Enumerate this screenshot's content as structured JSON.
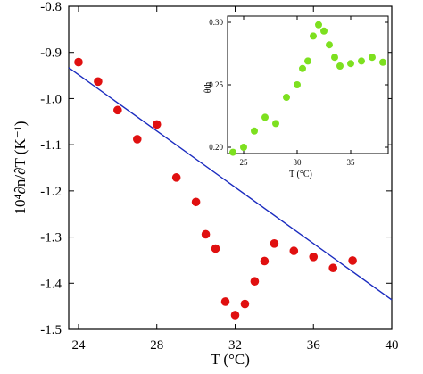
{
  "chart_data": [
    {
      "type": "scatter",
      "xlabel": "T (°C)",
      "ylabel": "10⁴∂n/∂T (K⁻¹)",
      "xlim": [
        23.5,
        40
      ],
      "ylim": [
        -1.5,
        -0.8
      ],
      "xticks": [
        24,
        28,
        32,
        36,
        40
      ],
      "yticks": [
        -0.8,
        -0.9,
        -1.0,
        -1.1,
        -1.2,
        -1.3,
        -1.4,
        -1.5
      ],
      "xtick_labels": [
        "24",
        "28",
        "32",
        "36",
        "40"
      ],
      "ytick_labels": [
        "-0.8",
        "-0.9",
        "-1.0",
        "-1.1",
        "-1.2",
        "-1.3",
        "-1.4",
        "-1.5"
      ],
      "marker_color": "#e01010",
      "line_color": "#1a2bbf",
      "series": [
        {
          "x": [
            24,
            25,
            26,
            27,
            28,
            29,
            30,
            30.5,
            31,
            31.5,
            32,
            32.5,
            33,
            33.5,
            34,
            35,
            36,
            37,
            38
          ],
          "y": [
            -0.921,
            -0.963,
            -1.025,
            -1.088,
            -1.056,
            -1.171,
            -1.224,
            -1.294,
            -1.325,
            -1.44,
            -1.469,
            -1.445,
            -1.396,
            -1.352,
            -1.314,
            -1.33,
            -1.343,
            -1.367,
            -1.351
          ]
        }
      ],
      "fit_line": {
        "x": [
          23.5,
          40
        ],
        "y": [
          -0.933,
          -1.436
        ]
      }
    },
    {
      "type": "scatter",
      "xlabel": "T (°C)",
      "ylabel": "θth",
      "xlim": [
        23.5,
        38.5
      ],
      "ylim": [
        0.195,
        0.305
      ],
      "xticks": [
        25,
        30,
        35
      ],
      "yticks": [
        0.2,
        0.25,
        0.3
      ],
      "xtick_labels": [
        "25",
        "30",
        "35"
      ],
      "ytick_labels": [
        "0.20",
        "0.25",
        "0.30"
      ],
      "marker_color": "#7de01f",
      "series": [
        {
          "x": [
            24,
            25,
            26,
            27,
            28,
            29,
            30,
            30.5,
            31,
            31.5,
            32,
            32.5,
            33,
            33.5,
            34,
            35,
            36,
            37,
            38
          ],
          "y": [
            0.196,
            0.2,
            0.213,
            0.224,
            0.219,
            0.24,
            0.25,
            0.263,
            0.269,
            0.289,
            0.298,
            0.293,
            0.282,
            0.272,
            0.265,
            0.267,
            0.269,
            0.272,
            0.268
          ]
        }
      ]
    }
  ]
}
